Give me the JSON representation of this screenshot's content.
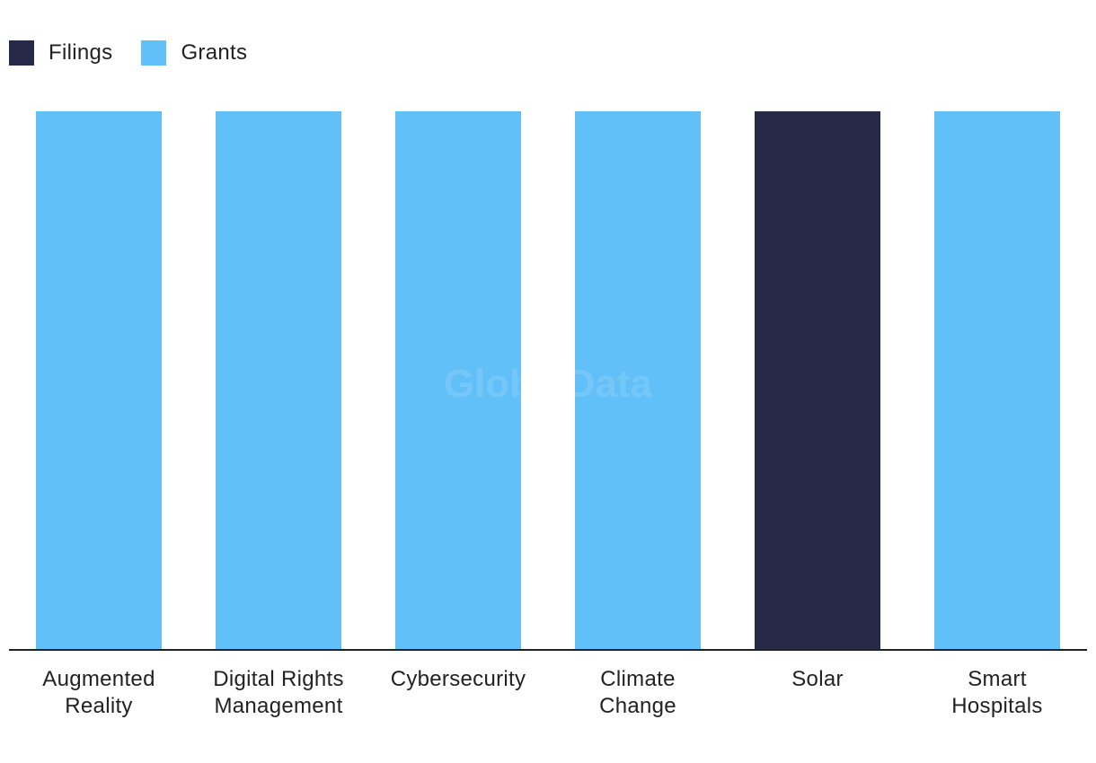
{
  "chart_data": {
    "type": "bar",
    "categories": [
      [
        "Augmented",
        "Reality"
      ],
      [
        "Digital Rights",
        "Management"
      ],
      [
        "Cybersecurity"
      ],
      [
        "Climate",
        "Change"
      ],
      [
        "Solar"
      ],
      [
        "Smart",
        "Hospitals"
      ]
    ],
    "series": [
      {
        "name": "Filings",
        "color": "#272949",
        "values": [
          0,
          0,
          0,
          0,
          1,
          0
        ]
      },
      {
        "name": "Grants",
        "color": "#62C0F8",
        "values": [
          1,
          1,
          1,
          1,
          0,
          1
        ]
      }
    ],
    "stacked": true,
    "ylim": [
      0,
      1
    ],
    "legend_position": "top-left",
    "watermark": "GlobalData",
    "grid": false
  }
}
